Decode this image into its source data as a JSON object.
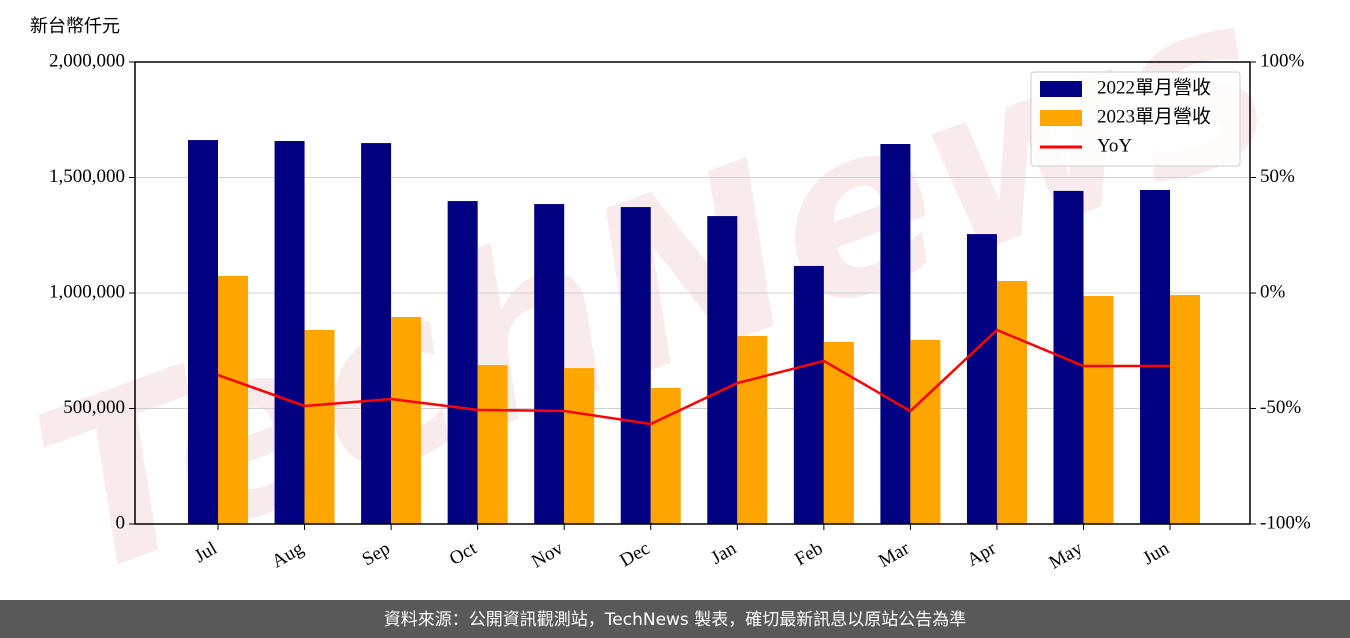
{
  "chart_data": {
    "type": "bar",
    "ylabel": "新台幣仟元",
    "footer": "資料來源：公開資訊觀測站，TechNews 製表，確切最新訊息以原站公告為準",
    "watermark": "TechNews",
    "categories": [
      "Jul",
      "Aug",
      "Sep",
      "Oct",
      "Nov",
      "Dec",
      "Jan",
      "Feb",
      "Mar",
      "Apr",
      "May",
      "Jun"
    ],
    "series": [
      {
        "name": "2022單月營收",
        "type": "bar",
        "color": "#000080",
        "values": [
          1662000,
          1658000,
          1649000,
          1398000,
          1385000,
          1372000,
          1333000,
          1117000,
          1645000,
          1255000,
          1442000,
          1446000
        ]
      },
      {
        "name": "2023單月營收",
        "type": "bar",
        "color": "#ffa500",
        "values": [
          1074000,
          840000,
          896000,
          688000,
          675000,
          589000,
          814000,
          788000,
          797000,
          1052000,
          987000,
          991000
        ]
      },
      {
        "name": "YoY",
        "type": "line",
        "axis": "y2",
        "color": "#ff0000",
        "values": [
          -35.5,
          -48.9,
          -45.9,
          -50.6,
          -51.1,
          -56.7,
          -39,
          -29.4,
          -51.1,
          -16,
          -31.6,
          -31.6
        ]
      }
    ],
    "ylim": [
      0,
      2000000
    ],
    "yticks": [
      0,
      {
        "value": 500000,
        "label": "500,000"
      },
      {
        "value": 1000000,
        "label": "1,000,000"
      },
      {
        "value": 1500000,
        "label": "1,500,000"
      },
      {
        "value": 2000000,
        "label": "2,000,000"
      }
    ],
    "y2lim": [
      -100,
      100
    ],
    "y2ticks": [
      {
        "value": -100,
        "label": "-100%"
      },
      {
        "value": -50,
        "label": "-50%"
      },
      {
        "value": 0,
        "label": "0%"
      },
      {
        "value": 50,
        "label": "50%"
      },
      {
        "value": 100,
        "label": "100%"
      }
    ],
    "grid": true,
    "legend": "upper right"
  }
}
